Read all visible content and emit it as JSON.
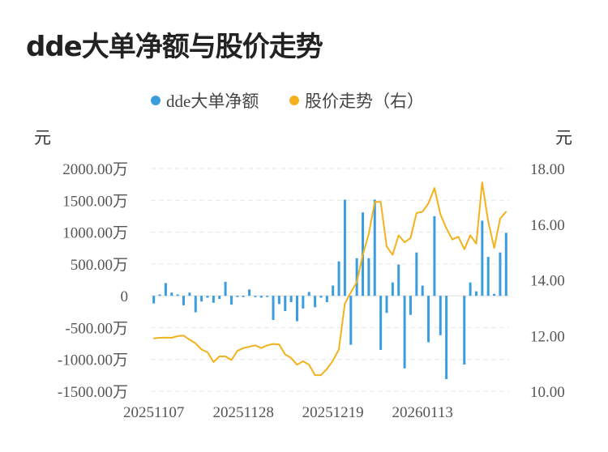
{
  "title": "dde大单净额与股价走势",
  "legend": {
    "bar_label": "dde大单净额",
    "line_label": "股价走势（右）"
  },
  "colors": {
    "bar": "#3a9de0",
    "line": "#f3b21c",
    "grid": "#e6e6e6"
  },
  "chart_data": {
    "type": "bar",
    "title": "dde大单净额与股价走势",
    "left_axis": {
      "unit": "元",
      "min": -1500,
      "max": 2000,
      "ticks": [
        2000,
        1500,
        1000,
        500,
        0,
        -500,
        -1000,
        -1500
      ],
      "tick_labels": [
        "2000.00万",
        "1500.00万",
        "1000.00万",
        "500.00万",
        "0",
        "-500.00万",
        "-1000.00万",
        "-1500.00万"
      ]
    },
    "right_axis": {
      "unit": "元",
      "min": 10,
      "max": 18,
      "ticks": [
        18,
        16,
        14,
        12,
        10
      ],
      "tick_labels": [
        "18.00",
        "16.00",
        "14.00",
        "12.00",
        "10.00"
      ]
    },
    "x_tick_labels": [
      {
        "label": "20251107",
        "index": 0
      },
      {
        "label": "20251128",
        "index": 15
      },
      {
        "label": "20251219",
        "index": 30
      },
      {
        "label": "20260113",
        "index": 45
      }
    ],
    "grid": true,
    "legend_position": "top-center",
    "series": [
      {
        "name": "dde大单净额",
        "type": "bar",
        "axis": "left",
        "values": [
          -120,
          20,
          200,
          50,
          20,
          -150,
          50,
          -260,
          -90,
          -30,
          -110,
          -50,
          220,
          -140,
          -20,
          -20,
          100,
          -20,
          -30,
          -20,
          -380,
          -130,
          -240,
          -100,
          -400,
          -200,
          60,
          -180,
          -30,
          -100,
          160,
          540,
          1510,
          -770,
          590,
          1310,
          590,
          1510,
          -850,
          -270,
          210,
          490,
          -1140,
          -300,
          680,
          160,
          -730,
          1250,
          -620,
          -1310,
          0,
          0,
          -1080,
          210,
          70,
          1180,
          610,
          30,
          680,
          990
        ]
      },
      {
        "name": "股价走势（右）",
        "type": "line",
        "axis": "right",
        "values": [
          11.9,
          11.92,
          11.93,
          11.92,
          11.98,
          12.0,
          11.85,
          11.72,
          11.5,
          11.4,
          11.05,
          11.25,
          11.25,
          11.12,
          11.45,
          11.55,
          11.6,
          11.65,
          11.55,
          11.65,
          11.7,
          11.68,
          11.32,
          11.2,
          10.95,
          11.08,
          10.95,
          10.58,
          10.58,
          10.8,
          11.1,
          11.5,
          13.15,
          13.55,
          13.92,
          14.9,
          15.65,
          16.8,
          16.8,
          15.2,
          14.9,
          15.6,
          15.35,
          15.5,
          16.4,
          16.45,
          16.75,
          17.3,
          16.35,
          15.85,
          15.45,
          15.55,
          15.1,
          15.6,
          15.3,
          17.5,
          16.1,
          15.15,
          16.2,
          16.45
        ]
      }
    ]
  }
}
